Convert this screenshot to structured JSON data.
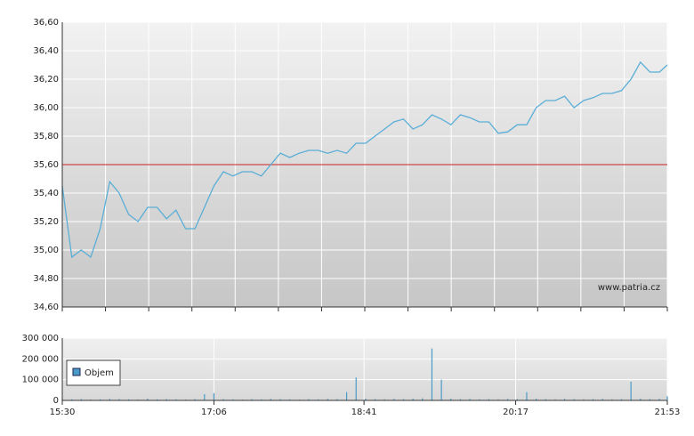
{
  "chart_data": [
    {
      "type": "line",
      "annotation": "www.patria.cz",
      "xlim": [
        "15:30",
        "21:53"
      ],
      "ylim": [
        34.6,
        36.6
      ],
      "yticks": [
        {
          "value": 34.6,
          "label": "34,60"
        },
        {
          "value": 34.8,
          "label": "34,80"
        },
        {
          "value": 35.0,
          "label": "35,00"
        },
        {
          "value": 35.2,
          "label": "35,20"
        },
        {
          "value": 35.4,
          "label": "35,40"
        },
        {
          "value": 35.6,
          "label": "35,60"
        },
        {
          "value": 35.8,
          "label": "35,80"
        },
        {
          "value": 36.0,
          "label": "36,00"
        },
        {
          "value": 36.2,
          "label": "36,20"
        },
        {
          "value": 36.4,
          "label": "36,40"
        },
        {
          "value": 36.6,
          "label": "36,60"
        }
      ],
      "grid": true,
      "reference_line": 35.6,
      "reference_color": "#cc2222",
      "x": [
        "15:30",
        "15:36",
        "15:42",
        "15:48",
        "15:54",
        "16:00",
        "16:06",
        "16:12",
        "16:18",
        "16:24",
        "16:30",
        "16:36",
        "16:42",
        "16:48",
        "16:54",
        "17:00",
        "17:06",
        "17:12",
        "17:18",
        "17:24",
        "17:30",
        "17:36",
        "17:42",
        "17:48",
        "17:54",
        "18:00",
        "18:06",
        "18:12",
        "18:18",
        "18:24",
        "18:30",
        "18:36",
        "18:42",
        "18:48",
        "18:54",
        "19:00",
        "19:06",
        "19:12",
        "19:18",
        "19:24",
        "19:30",
        "19:36",
        "19:42",
        "19:48",
        "19:54",
        "20:00",
        "20:06",
        "20:12",
        "20:18",
        "20:24",
        "20:30",
        "20:36",
        "20:42",
        "20:48",
        "20:54",
        "21:00",
        "21:06",
        "21:12",
        "21:18",
        "21:24",
        "21:30",
        "21:36",
        "21:42",
        "21:48",
        "21:53"
      ],
      "series": [
        {
          "color": "#5aaed6",
          "values": [
            35.45,
            34.95,
            35.0,
            34.95,
            35.15,
            35.48,
            35.4,
            35.25,
            35.2,
            35.3,
            35.3,
            35.22,
            35.28,
            35.15,
            35.15,
            35.3,
            35.45,
            35.55,
            35.52,
            35.55,
            35.55,
            35.52,
            35.6,
            35.68,
            35.65,
            35.68,
            35.7,
            35.7,
            35.68,
            35.7,
            35.68,
            35.75,
            35.75,
            35.8,
            35.85,
            35.9,
            35.92,
            35.85,
            35.88,
            35.95,
            35.92,
            35.88,
            35.95,
            35.93,
            35.9,
            35.9,
            35.82,
            35.83,
            35.88,
            35.88,
            36.0,
            36.05,
            36.05,
            36.08,
            36.0,
            36.05,
            36.07,
            36.1,
            36.1,
            36.12,
            36.2,
            36.32,
            36.25,
            36.25,
            36.3
          ]
        }
      ]
    },
    {
      "type": "bar",
      "xlim": [
        "15:30",
        "21:53"
      ],
      "xticks": [
        "15:30",
        "17:06",
        "18:41",
        "20:17",
        "21:53"
      ],
      "ylim": [
        0,
        300000
      ],
      "yticks": [
        0,
        {
          "value": 100000,
          "label": "100 000"
        },
        {
          "value": 200000,
          "label": "200 000"
        },
        {
          "value": 300000,
          "label": "300 000"
        }
      ],
      "grid": true,
      "x": [
        "15:30",
        "15:36",
        "15:42",
        "15:48",
        "15:54",
        "16:00",
        "16:06",
        "16:12",
        "16:18",
        "16:24",
        "16:30",
        "16:36",
        "16:42",
        "16:48",
        "16:54",
        "17:00",
        "17:06",
        "17:12",
        "17:18",
        "17:24",
        "17:30",
        "17:36",
        "17:42",
        "17:48",
        "17:54",
        "18:00",
        "18:06",
        "18:12",
        "18:18",
        "18:24",
        "18:30",
        "18:36",
        "18:42",
        "18:48",
        "18:54",
        "19:00",
        "19:06",
        "19:12",
        "19:18",
        "19:24",
        "19:30",
        "19:36",
        "19:42",
        "19:48",
        "19:54",
        "20:00",
        "20:06",
        "20:12",
        "20:18",
        "20:24",
        "20:30",
        "20:36",
        "20:42",
        "20:48",
        "20:54",
        "21:00",
        "21:06",
        "21:12",
        "21:18",
        "21:24",
        "21:30",
        "21:36",
        "21:42",
        "21:48",
        "21:53"
      ],
      "series": [
        {
          "name": "Objem",
          "color": "#4a9ac8",
          "values": [
            8000,
            5000,
            6000,
            4000,
            5000,
            7000,
            6000,
            5000,
            4000,
            8000,
            5000,
            6000,
            5000,
            4000,
            6000,
            30000,
            35000,
            6000,
            5000,
            4000,
            6000,
            5000,
            7000,
            6000,
            5000,
            4000,
            6000,
            5000,
            7000,
            6000,
            40000,
            110000,
            8000,
            6000,
            5000,
            7000,
            6000,
            8000,
            10000,
            250000,
            100000,
            8000,
            6000,
            7000,
            5000,
            6000,
            5000,
            7000,
            6000,
            40000,
            8000,
            6000,
            5000,
            7000,
            6000,
            5000,
            6000,
            7000,
            5000,
            6000,
            90000,
            8000,
            6000,
            7000,
            20000
          ]
        }
      ],
      "legend": "left"
    }
  ]
}
